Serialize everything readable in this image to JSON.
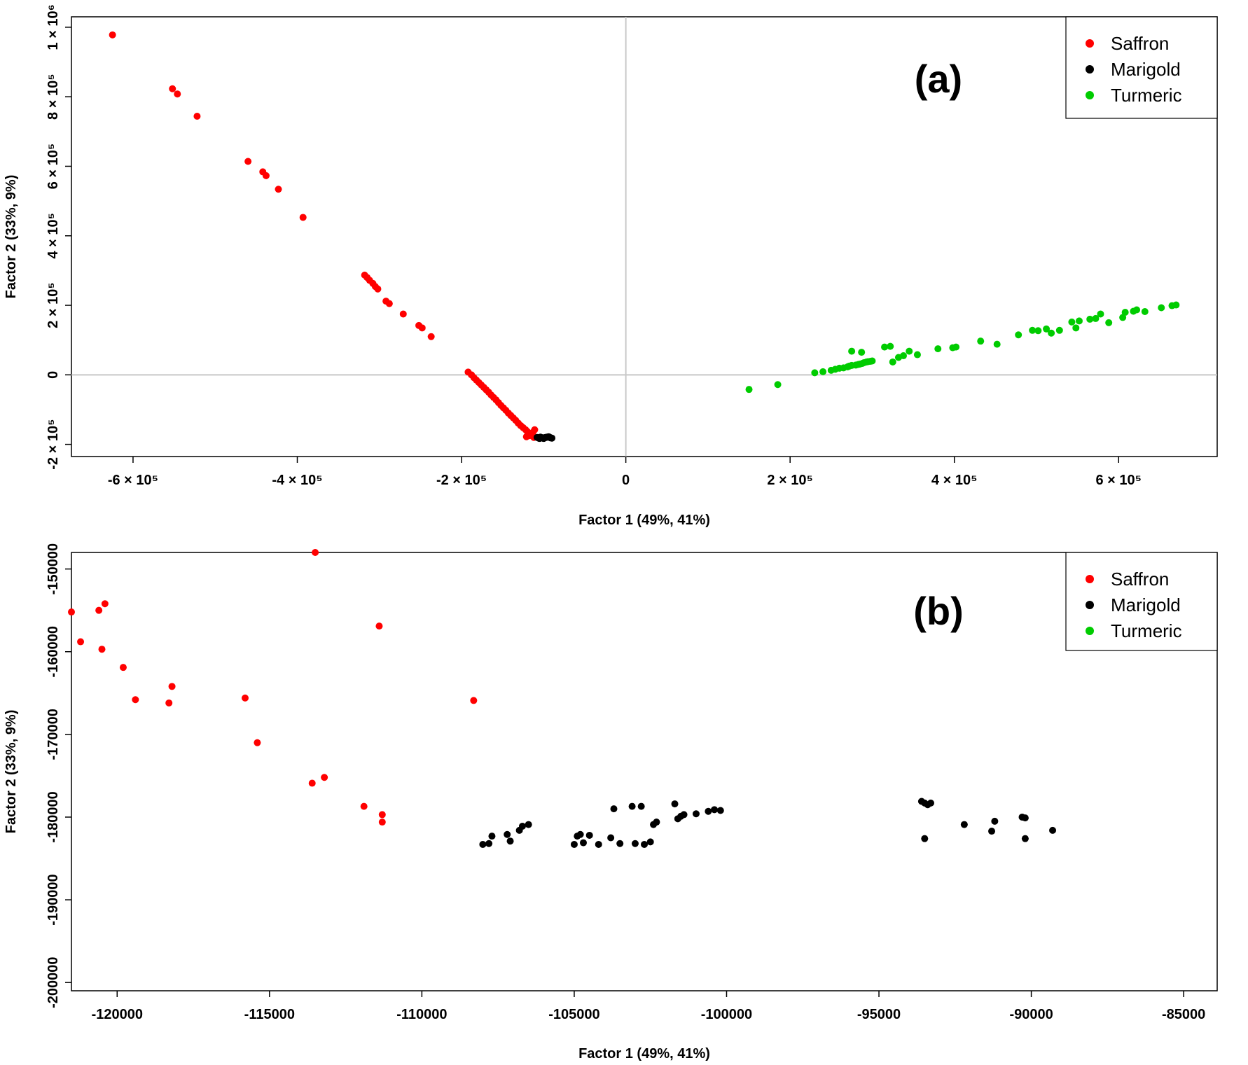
{
  "chart_data": [
    {
      "type": "scatter",
      "panel_label": "(a)",
      "xlabel": "Factor 1 (49%, 41%)",
      "ylabel": "Factor 2 (33%, 9%)",
      "xlim": [
        -675000,
        720000
      ],
      "ylim": [
        -235000,
        1030000
      ],
      "xticks": [
        -600000,
        -400000,
        -200000,
        0,
        200000,
        400000,
        600000
      ],
      "xtick_labels": [
        "-6 × 10⁵",
        "-4 × 10⁵",
        "-2 × 10⁵",
        "0",
        "2 × 10⁵",
        "4 × 10⁵",
        "6 × 10⁵"
      ],
      "yticks": [
        -200000,
        0,
        200000,
        400000,
        600000,
        800000,
        1000000
      ],
      "ytick_labels": [
        "-2 × 10⁵",
        "0",
        "2 × 10⁵",
        "4 × 10⁵",
        "6 × 10⁵",
        "8 × 10⁵",
        "1 × 10⁶"
      ],
      "reference_lines": {
        "x": 0,
        "y": 0
      },
      "legend_position": "top-right",
      "series": [
        {
          "name": "Saffron",
          "color": "#ff0000",
          "x": [
            -625000,
            -552000,
            -546000,
            -522000,
            -460000,
            -442000,
            -438000,
            -423000,
            -393000,
            -318000,
            -315000,
            -312000,
            -308000,
            -305000,
            -302000,
            -292000,
            -288000,
            -271000,
            -252000,
            -248000,
            -237000,
            -192000,
            -188000,
            -185000,
            -182000,
            -179000,
            -176000,
            -173000,
            -170000,
            -167000,
            -164000,
            -161000,
            -158000,
            -155000,
            -152000,
            -149000,
            -146000,
            -143000,
            -140000,
            -137000,
            -134000,
            -131000,
            -128000,
            -125000,
            -122000,
            -120000,
            -118000,
            -116000,
            -114000,
            -112000,
            -111000,
            -113000,
            -116000,
            -118000,
            -121000
          ],
          "y": [
            978000,
            823000,
            808000,
            744000,
            614000,
            584000,
            573000,
            534000,
            453000,
            287000,
            280000,
            272000,
            263000,
            254000,
            247000,
            212000,
            205000,
            175000,
            142000,
            135000,
            110000,
            8000,
            0,
            -8000,
            -15000,
            -22000,
            -29000,
            -36000,
            -43000,
            -50000,
            -58000,
            -65000,
            -72000,
            -80000,
            -88000,
            -95000,
            -102000,
            -110000,
            -117000,
            -124000,
            -131000,
            -139000,
            -146000,
            -152000,
            -158000,
            -163000,
            -168000,
            -172000,
            -176000,
            -180000,
            -158000,
            -165000,
            -170000,
            -175000,
            -178000
          ]
        },
        {
          "name": "Marigold",
          "color": "#000000",
          "x": [
            -108000,
            -106000,
            -104000,
            -102000,
            -100000,
            -98000,
            -96000,
            -94000,
            -92000,
            -90000,
            -105000,
            -101000,
            -97000,
            -93000
          ],
          "y": [
            -180000,
            -182000,
            -179000,
            -181000,
            -183000,
            -180000,
            -179000,
            -178000,
            -181000,
            -182000,
            -183000,
            -181000,
            -180000,
            -179000
          ]
        },
        {
          "name": "Turmeric",
          "color": "#00cc00",
          "x": [
            150000,
            185000,
            230000,
            240000,
            250000,
            255000,
            260000,
            265000,
            270000,
            272000,
            275000,
            280000,
            283000,
            285000,
            288000,
            290000,
            293000,
            295000,
            298000,
            300000,
            275000,
            287000,
            315000,
            322000,
            325000,
            332000,
            338000,
            345000,
            355000,
            380000,
            398000,
            402000,
            432000,
            452000,
            478000,
            495000,
            502000,
            512000,
            518000,
            528000,
            543000,
            548000,
            552000,
            565000,
            572000,
            578000,
            588000,
            605000,
            608000,
            618000,
            622000,
            632000,
            652000,
            665000,
            670000
          ],
          "y": [
            -42000,
            -28000,
            6000,
            9000,
            13000,
            16000,
            19000,
            20000,
            23000,
            25000,
            27000,
            28000,
            30000,
            31000,
            33000,
            35000,
            37000,
            38000,
            39000,
            40000,
            68000,
            65000,
            80000,
            82000,
            37000,
            50000,
            55000,
            68000,
            58000,
            75000,
            78000,
            80000,
            97000,
            88000,
            115000,
            128000,
            127000,
            132000,
            120000,
            128000,
            152000,
            135000,
            155000,
            160000,
            162000,
            175000,
            150000,
            165000,
            180000,
            183000,
            187000,
            182000,
            193000,
            199000,
            201000
          ]
        }
      ],
      "legend": [
        "Saffron",
        "Marigold",
        "Turmeric"
      ]
    },
    {
      "type": "scatter",
      "panel_label": "(b)",
      "xlabel": "Factor 1 (49%, 41%)",
      "ylabel": "Factor 2 (33%, 9%)",
      "xlim": [
        -121500,
        -83900
      ],
      "ylim": [
        -201000,
        -148000
      ],
      "xticks": [
        -120000,
        -115000,
        -110000,
        -105000,
        -100000,
        -95000,
        -90000,
        -85000
      ],
      "xtick_labels": [
        "-120000",
        "-115000",
        "-110000",
        "-105000",
        "-100000",
        "-95000",
        "-90000",
        "-85000"
      ],
      "yticks": [
        -200000,
        -190000,
        -180000,
        -170000,
        -160000,
        -150000
      ],
      "ytick_labels": [
        "-200000",
        "-190000",
        "-180000",
        "-170000",
        "-160000",
        "-150000"
      ],
      "legend_position": "top-right",
      "series": [
        {
          "name": "Saffron",
          "color": "#ff0000",
          "x": [
            -121500,
            -121200,
            -120600,
            -120500,
            -120400,
            -119800,
            -119400,
            -118300,
            -118200,
            -115800,
            -115400,
            -113600,
            -113200,
            -113500,
            -111900,
            -111400,
            -111300,
            -111300,
            -108300
          ],
          "y": [
            -155200,
            -158800,
            -155000,
            -159700,
            -154200,
            -161900,
            -165800,
            -166200,
            -164200,
            -165600,
            -171000,
            -175900,
            -175200,
            -148000,
            -178700,
            -156900,
            -179700,
            -180600,
            -165900
          ]
        },
        {
          "name": "Marigold",
          "color": "#000000",
          "x": [
            -108000,
            -107800,
            -107700,
            -107200,
            -107100,
            -106800,
            -106700,
            -106500,
            -105000,
            -104900,
            -104800,
            -104700,
            -104500,
            -104200,
            -103800,
            -103700,
            -103500,
            -103100,
            -103000,
            -102800,
            -102700,
            -102500,
            -102400,
            -102300,
            -101700,
            -101600,
            -101500,
            -101400,
            -101000,
            -100600,
            -100400,
            -100200,
            -93600,
            -93500,
            -93400,
            -93300,
            -93500,
            -92200,
            -91300,
            -91200,
            -90300,
            -90200,
            -90200,
            -89300
          ],
          "y": [
            -183300,
            -183200,
            -182300,
            -182100,
            -182900,
            -181600,
            -181100,
            -180900,
            -183300,
            -182300,
            -182100,
            -183100,
            -182200,
            -183300,
            -182500,
            -179000,
            -183200,
            -178700,
            -183200,
            -178700,
            -183300,
            -183000,
            -180900,
            -180600,
            -178400,
            -180200,
            -179900,
            -179700,
            -179600,
            -179300,
            -179100,
            -179200,
            -178100,
            -178300,
            -178500,
            -178300,
            -182600,
            -180900,
            -181700,
            -180500,
            -180000,
            -180100,
            -182600,
            -181600
          ]
        },
        {
          "name": "Turmeric",
          "color": "#00cc00",
          "x": [],
          "y": []
        }
      ],
      "legend": [
        "Saffron",
        "Marigold",
        "Turmeric"
      ]
    }
  ]
}
